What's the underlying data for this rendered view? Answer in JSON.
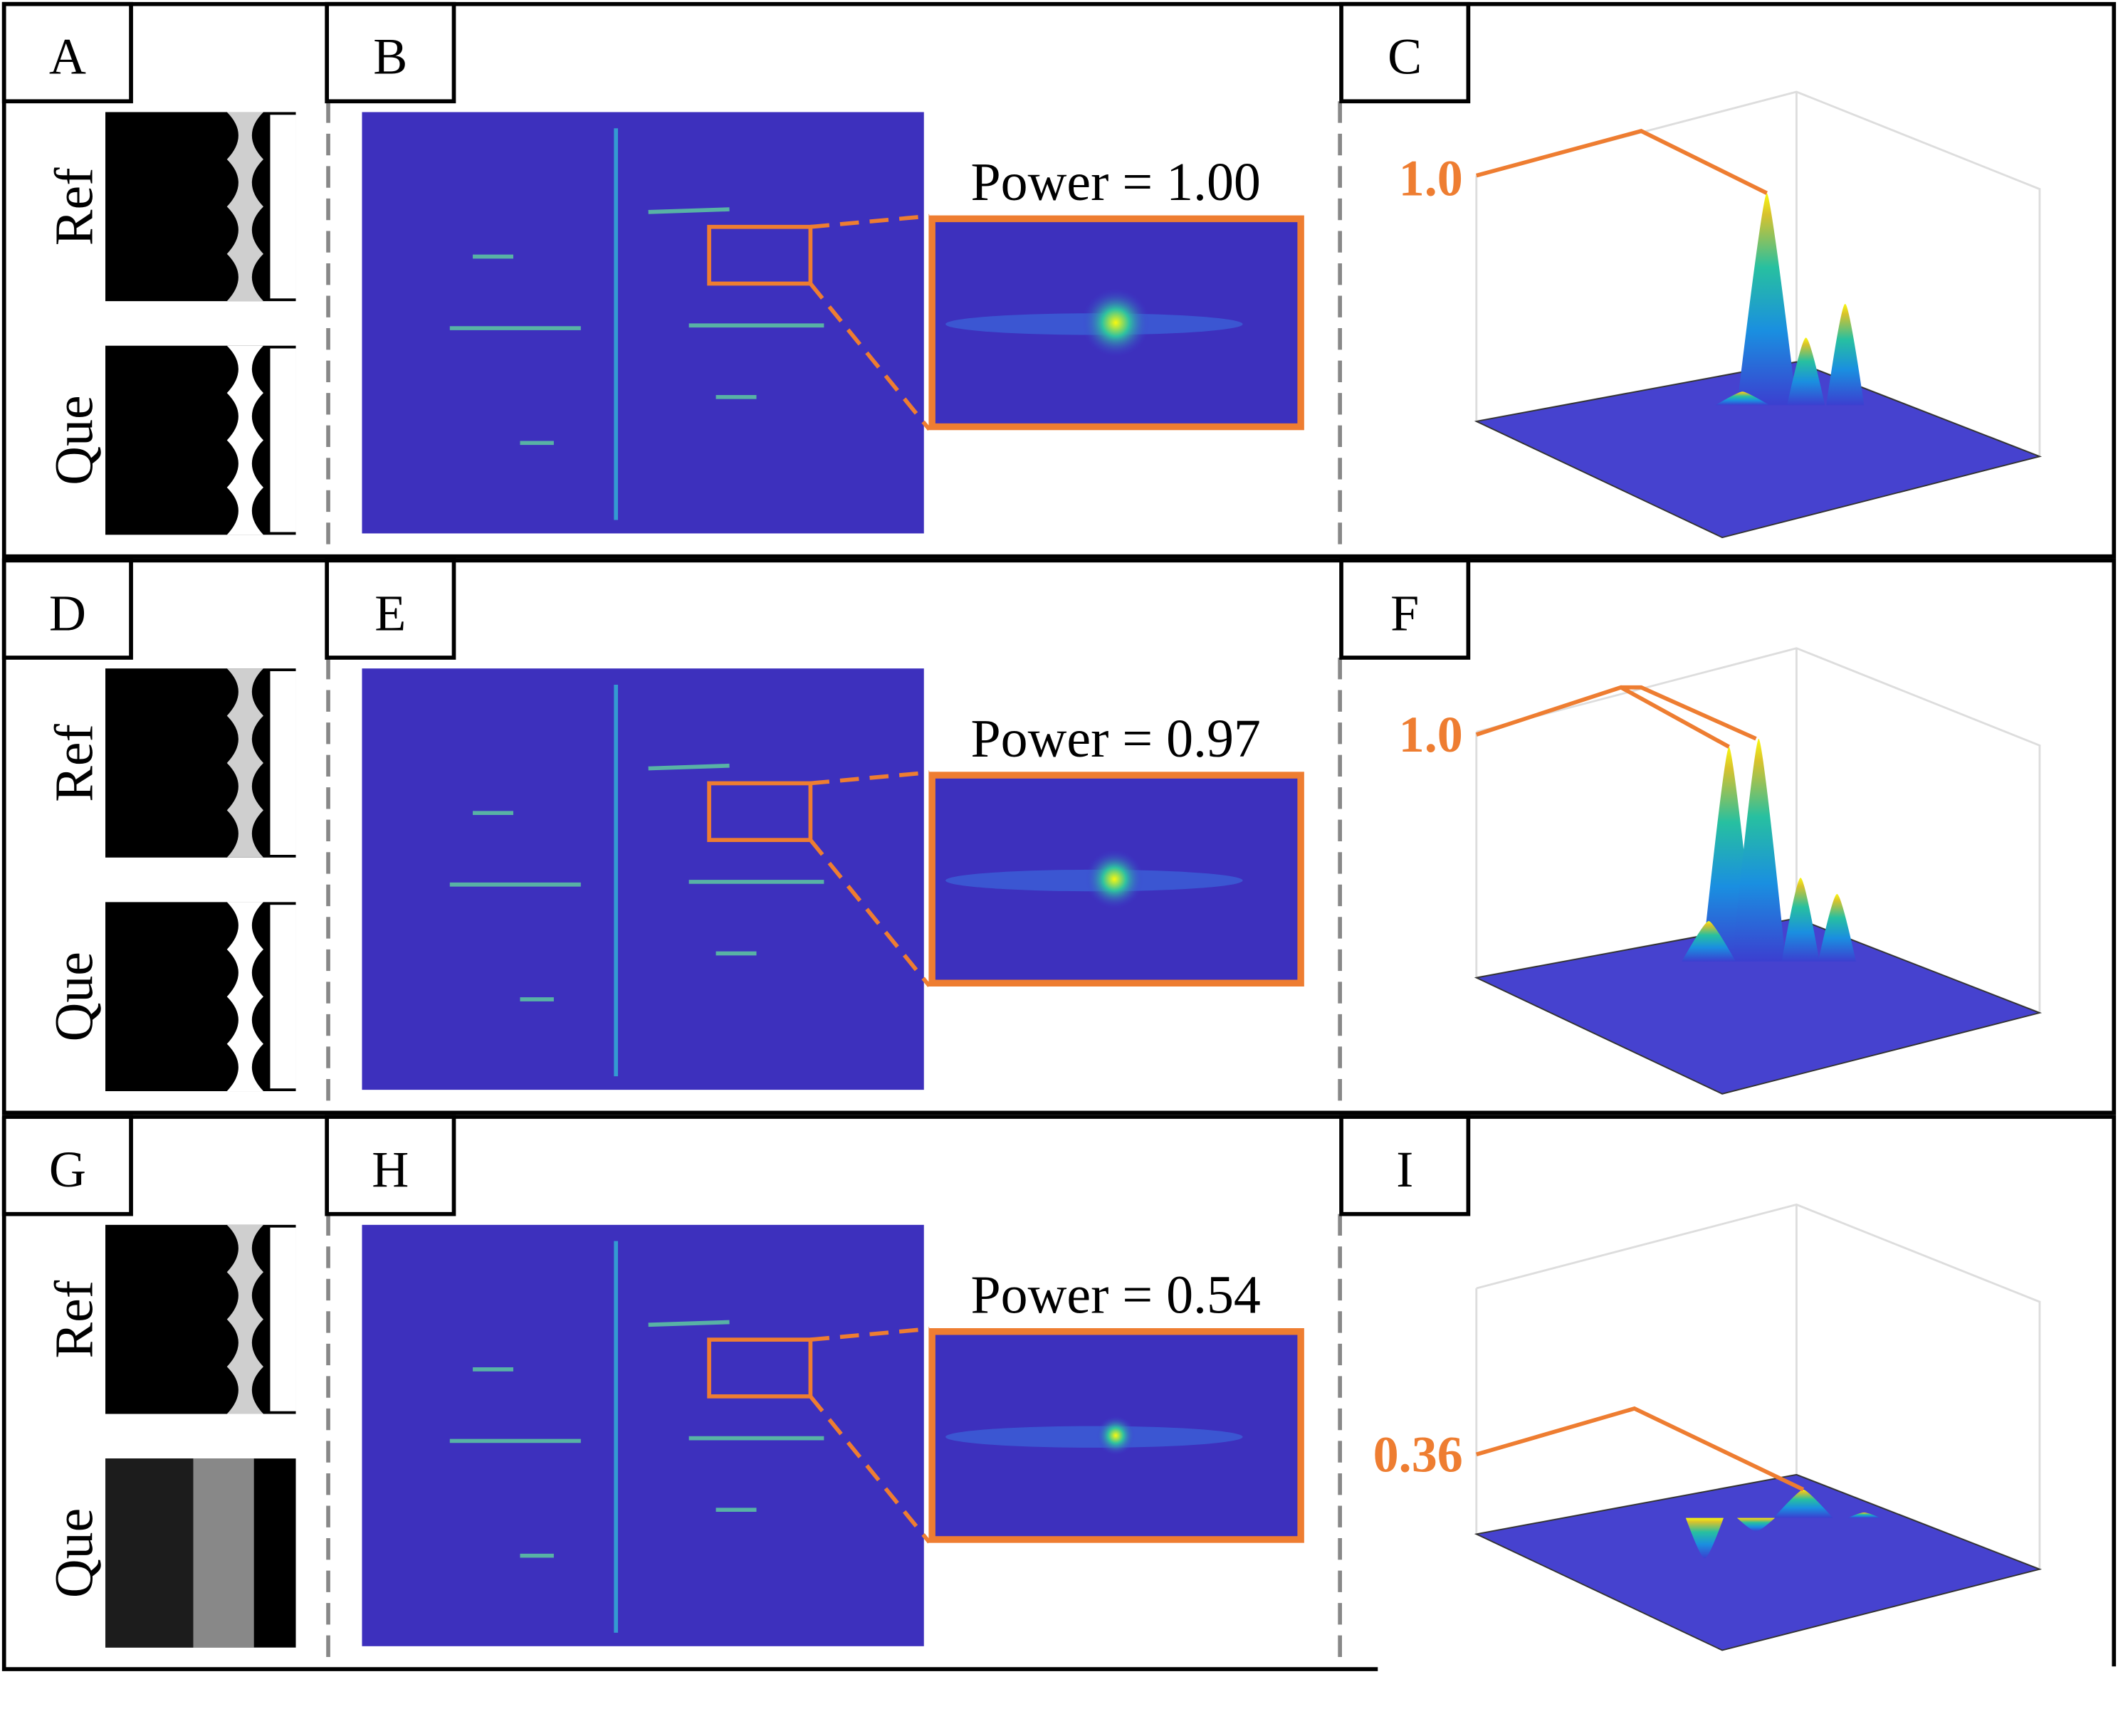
{
  "rows": [
    {
      "panel_labels": [
        "A",
        "B",
        "C"
      ],
      "ref_label": "Ref",
      "que_label": "Que",
      "power": "Power = 1.00",
      "peak": "1.0"
    },
    {
      "panel_labels": [
        "D",
        "E",
        "F"
      ],
      "ref_label": "Ref",
      "que_label": "Que",
      "power": "Power = 0.97",
      "peak": "1.0"
    },
    {
      "panel_labels": [
        "G",
        "H",
        "I"
      ],
      "ref_label": "Ref",
      "que_label": "Que",
      "power": "Power = 0.54",
      "peak": "0.36"
    }
  ]
}
